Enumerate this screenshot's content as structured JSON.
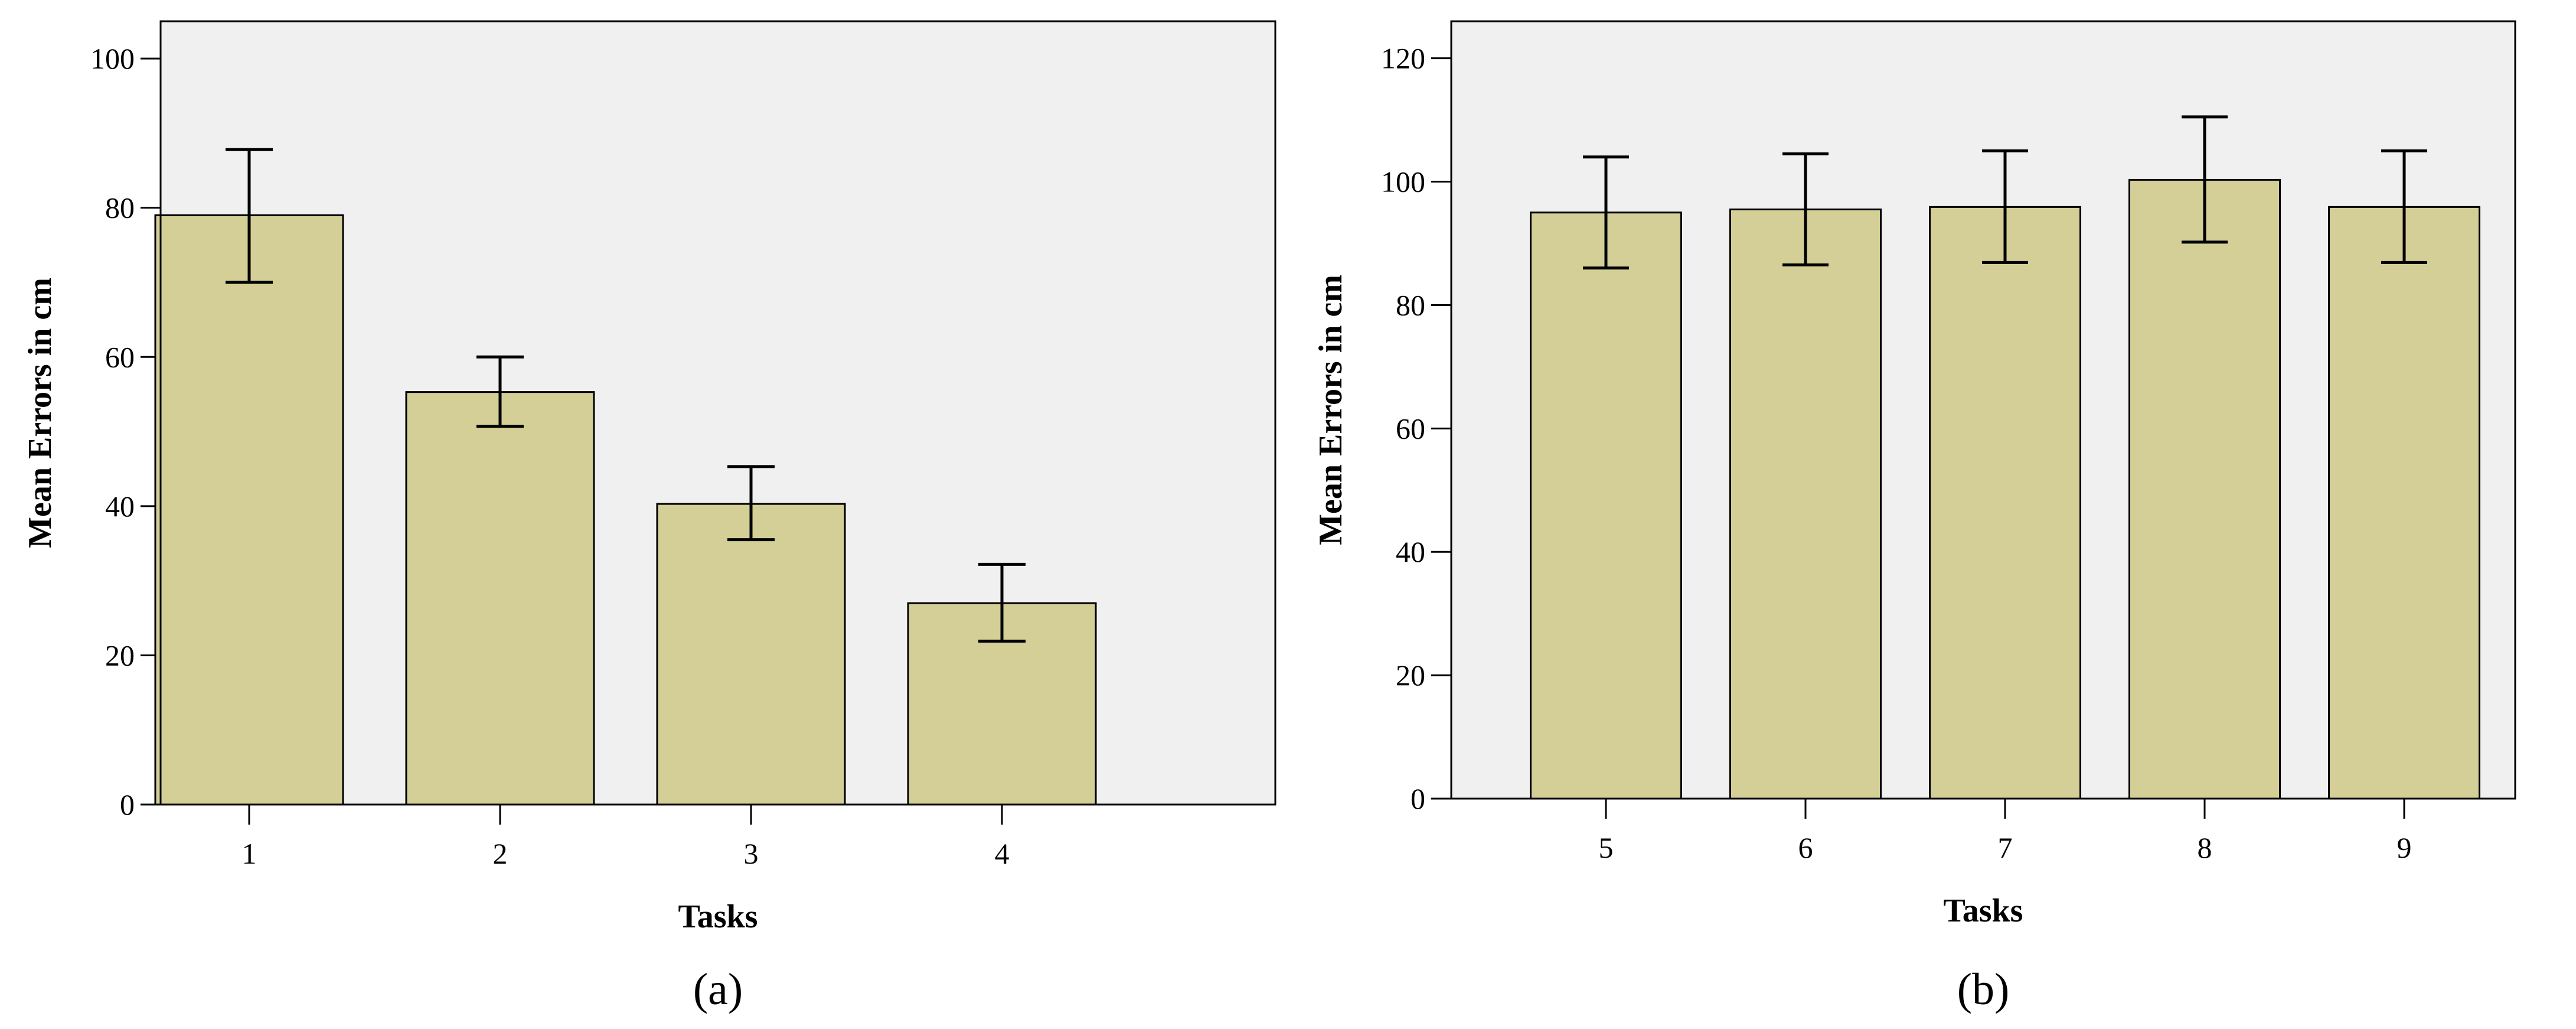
{
  "colors": {
    "bar_fill": "#d3cf96",
    "plot_background": "#f0f0f0"
  },
  "chart_data": [
    {
      "type": "bar",
      "panel_label": "(a)",
      "xlabel": "Tasks",
      "ylabel": "Mean Errors in cm",
      "categories": [
        "1",
        "2",
        "3",
        "4"
      ],
      "values": [
        79,
        55.3,
        40.3,
        27
      ],
      "error_low": [
        70,
        50.7,
        35.5,
        21.9
      ],
      "error_high": [
        87.8,
        60,
        45.3,
        32.2
      ],
      "ylim": [
        0,
        105
      ],
      "yticks": [
        0,
        20,
        40,
        60,
        80,
        100
      ],
      "grid": false
    },
    {
      "type": "bar",
      "panel_label": "(b)",
      "xlabel": "Tasks",
      "ylabel": "Mean Errors in cm",
      "categories": [
        "5",
        "6",
        "7",
        "8",
        "9"
      ],
      "values": [
        95,
        95.5,
        95.9,
        100.3,
        95.9
      ],
      "error_low": [
        86,
        86.5,
        86.9,
        90.2,
        86.9
      ],
      "error_high": [
        104,
        104.5,
        105,
        110.5,
        105
      ],
      "ylim": [
        0,
        126
      ],
      "yticks": [
        0,
        20,
        40,
        60,
        80,
        100,
        120
      ],
      "grid": false
    }
  ]
}
